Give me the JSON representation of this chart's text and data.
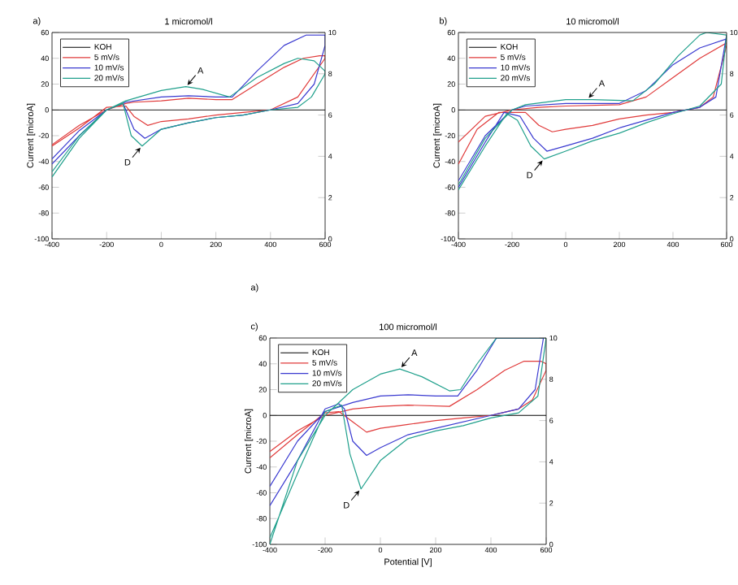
{
  "chart_data": [
    {
      "type": "line",
      "title": "1 micromol/l",
      "ylabel": "Current [microA]",
      "y2lim": [
        0,
        10
      ],
      "y2ticks": [
        0,
        2,
        4,
        6,
        8,
        10
      ],
      "xlim": [
        -400,
        600
      ],
      "xticks": [
        -400,
        -200,
        0,
        200,
        400,
        600
      ],
      "ylim": [
        -100,
        60
      ],
      "yticks": [
        -100,
        -80,
        -60,
        -40,
        -20,
        0,
        20,
        40,
        60
      ],
      "legend": "top left",
      "marker": "none",
      "line_style": "solid",
      "annotations": [
        "a)",
        {
          "text": "A",
          "x": 90,
          "y": 18
        },
        {
          "text": "D",
          "x": -70,
          "y": -28
        }
      ],
      "series": [
        {
          "name": "KOH",
          "color": "#000000",
          "x": [
            -400,
            600
          ],
          "values": [
            0,
            0
          ]
        },
        {
          "name": "5 mV/s",
          "color": "#e03a3a",
          "x": [
            -400,
            -300,
            -200,
            -130,
            -100,
            0,
            100,
            200,
            260,
            350,
            450,
            520,
            580,
            600,
            600,
            500,
            400,
            300,
            200,
            100,
            0,
            -50,
            -100,
            -130,
            -200,
            -300,
            -400
          ],
          "values": [
            -27,
            -12,
            0,
            5,
            6,
            7,
            9,
            8,
            8,
            20,
            33,
            40,
            42,
            42,
            40,
            10,
            0,
            -2,
            -4,
            -7,
            -9,
            -12,
            -5,
            3,
            2,
            -14,
            -28
          ]
        },
        {
          "name": "10 mV/s",
          "color": "#3a3ad0",
          "x": [
            -400,
            -300,
            -200,
            -130,
            0,
            100,
            200,
            260,
            350,
            450,
            530,
            600,
            600,
            560,
            500,
            400,
            300,
            200,
            100,
            0,
            -60,
            -100,
            -140,
            -200,
            -300,
            -400
          ],
          "values": [
            -38,
            -16,
            0,
            6,
            10,
            11,
            10,
            10,
            30,
            50,
            58,
            58,
            50,
            20,
            5,
            0,
            -4,
            -6,
            -10,
            -15,
            -22,
            -15,
            5,
            0,
            -20,
            -42
          ]
        },
        {
          "name": "20 mV/s",
          "color": "#20a08c",
          "x": [
            -400,
            -300,
            -200,
            -130,
            0,
            90,
            150,
            250,
            350,
            450,
            500,
            560,
            600,
            600,
            550,
            500,
            400,
            300,
            200,
            100,
            0,
            -70,
            -110,
            -140,
            -200,
            -300,
            -400
          ],
          "values": [
            -48,
            -20,
            0,
            7,
            15,
            18,
            16,
            10,
            25,
            36,
            40,
            38,
            30,
            28,
            10,
            2,
            0,
            -4,
            -6,
            -10,
            -15,
            -28,
            -20,
            5,
            0,
            -22,
            -52
          ]
        }
      ]
    },
    {
      "type": "line",
      "title": "10 micromol/l",
      "ylabel": "Current [microA]",
      "y2lim": [
        0,
        10
      ],
      "y2ticks": [
        0,
        2,
        4,
        6,
        8,
        10
      ],
      "xlim": [
        -400,
        600
      ],
      "xticks": [
        -400,
        -200,
        0,
        200,
        400,
        600
      ],
      "ylim": [
        -100,
        60
      ],
      "yticks": [
        -100,
        -80,
        -60,
        -40,
        -20,
        0,
        20,
        40,
        60
      ],
      "legend": "top left",
      "marker": "none",
      "line_style": "solid",
      "annotations": [
        "b)",
        {
          "text": "A",
          "x": 80,
          "y": 8
        },
        {
          "text": "D",
          "x": -80,
          "y": -38
        }
      ],
      "series": [
        {
          "name": "KOH",
          "color": "#000000",
          "x": [
            -400,
            600
          ],
          "values": [
            0,
            0
          ]
        },
        {
          "name": "5 mV/s",
          "color": "#e03a3a",
          "x": [
            -400,
            -300,
            -200,
            -100,
            0,
            200,
            300,
            400,
            500,
            600,
            600,
            550,
            500,
            400,
            300,
            200,
            100,
            0,
            -50,
            -100,
            -150,
            -250,
            -330,
            -400
          ],
          "values": [
            -25,
            -5,
            0,
            2,
            3,
            4,
            10,
            25,
            40,
            52,
            50,
            10,
            2,
            -2,
            -4,
            -7,
            -12,
            -15,
            -17,
            -12,
            -2,
            -2,
            -15,
            -42
          ]
        },
        {
          "name": "10 mV/s",
          "color": "#3a3ad0",
          "x": [
            -400,
            -300,
            -200,
            -150,
            0,
            200,
            300,
            400,
            500,
            600,
            600,
            560,
            500,
            400,
            300,
            200,
            100,
            0,
            -70,
            -120,
            -170,
            -230,
            -300,
            -400
          ],
          "values": [
            -55,
            -20,
            0,
            3,
            5,
            5,
            15,
            35,
            48,
            55,
            58,
            10,
            2,
            -2,
            -8,
            -14,
            -22,
            -28,
            -32,
            -22,
            -5,
            -2,
            -25,
            -60
          ]
        },
        {
          "name": "20 mV/s",
          "color": "#20a08c",
          "x": [
            -400,
            -300,
            -200,
            -150,
            0,
            100,
            250,
            330,
            420,
            500,
            525,
            600,
            580,
            500,
            400,
            300,
            200,
            100,
            0,
            -80,
            -130,
            -180,
            -220,
            -300,
            -400
          ],
          "values": [
            -58,
            -22,
            0,
            4,
            8,
            8,
            7,
            20,
            42,
            58,
            60,
            58,
            20,
            3,
            -3,
            -10,
            -18,
            -24,
            -32,
            -38,
            -28,
            -8,
            -3,
            -28,
            -62
          ]
        }
      ]
    },
    {
      "type": "line",
      "title": "100 micromol/l",
      "xlabel": "Potential [V]",
      "ylabel": "Current [microA]",
      "y2lim": [
        0,
        10
      ],
      "y2ticks": [
        0,
        2,
        4,
        6,
        8,
        10
      ],
      "xlim": [
        -400,
        600
      ],
      "xticks": [
        -400,
        -200,
        0,
        200,
        400,
        600
      ],
      "ylim": [
        -100,
        60
      ],
      "yticks": [
        -100,
        -80,
        -60,
        -40,
        -20,
        0,
        20,
        40,
        60
      ],
      "legend": "top left",
      "marker": "none",
      "line_style": "solid",
      "annotations": [
        "a)",
        "c)",
        {
          "text": "A",
          "x": 70,
          "y": 36
        },
        {
          "text": "D",
          "x": -70,
          "y": -57
        }
      ],
      "series": [
        {
          "name": "KOH",
          "color": "#000000",
          "x": [
            -400,
            600
          ],
          "values": [
            0,
            0
          ]
        },
        {
          "name": "5 mV/s",
          "color": "#e03a3a",
          "x": [
            -400,
            -300,
            -200,
            -100,
            0,
            100,
            250,
            350,
            450,
            520,
            580,
            600,
            600,
            550,
            500,
            400,
            300,
            200,
            100,
            0,
            -50,
            -100,
            -150,
            -200,
            -300,
            -400
          ],
          "values": [
            -28,
            -12,
            0,
            5,
            7,
            8,
            7,
            20,
            35,
            42,
            42,
            40,
            35,
            12,
            5,
            0,
            -2,
            -4,
            -7,
            -10,
            -13,
            -5,
            3,
            2,
            -15,
            -33
          ]
        },
        {
          "name": "10 mV/s",
          "color": "#3a3ad0",
          "x": [
            -400,
            -300,
            -200,
            -100,
            0,
            100,
            200,
            280,
            350,
            420,
            590,
            560,
            500,
            400,
            300,
            200,
            100,
            0,
            -50,
            -100,
            -130,
            -150,
            -200,
            -300,
            -400
          ],
          "values": [
            -55,
            -20,
            3,
            10,
            15,
            16,
            15,
            15,
            35,
            60,
            60,
            20,
            5,
            0,
            -5,
            -10,
            -15,
            -25,
            -31,
            -20,
            5,
            9,
            5,
            -35,
            -70
          ]
        },
        {
          "name": "20 mV/s",
          "color": "#20a08c",
          "x": [
            -400,
            -300,
            -200,
            -100,
            0,
            70,
            150,
            250,
            290,
            350,
            420,
            600,
            570,
            500,
            400,
            300,
            200,
            100,
            0,
            -70,
            -110,
            -140,
            -200,
            -300,
            -400
          ],
          "values": [
            -100,
            -35,
            0,
            20,
            32,
            36,
            30,
            19,
            20,
            40,
            60,
            60,
            15,
            2,
            -2,
            -8,
            -12,
            -18,
            -35,
            -57,
            -30,
            8,
            3,
            -45,
            -95
          ]
        }
      ]
    }
  ]
}
